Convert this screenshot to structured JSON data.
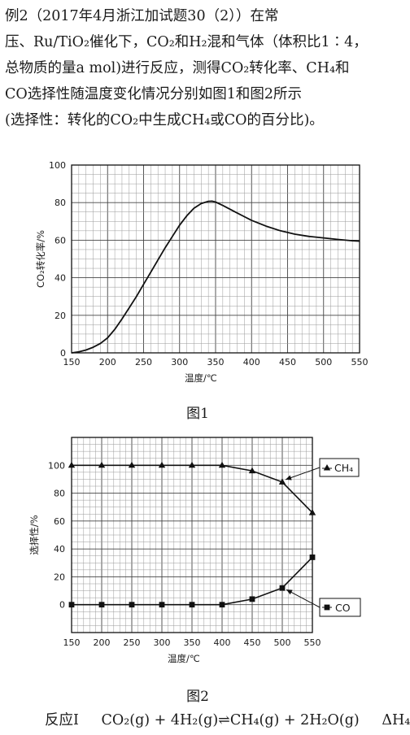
{
  "paragraph": {
    "lines": [
      "例2（2017年4月浙江加试题30（2））在常",
      "压、Ru/TiO₂催化下，CO₂和H₂混和气体（体积比1∶4，",
      "总物质的量a mol)进行反应，测得CO₂转化率、CH₄和",
      "CO选择性随温度变化情况分别如图1和图2所示",
      "(选择性：转化的CO₂中生成CH₄或CO的百分比)。"
    ]
  },
  "figure1_caption": "图1",
  "figure2_caption": "图2",
  "reaction_line": {
    "label": "反应Ⅰ",
    "equation": "CO₂(g) + 4H₂(g)⇌CH₄(g) + 2H₂O(g)",
    "delta": "ΔH₄"
  },
  "chart_data": [
    {
      "type": "line",
      "xlabel": "温度/℃",
      "ylabel": "CO₂转化率/%",
      "xlim": [
        150,
        550
      ],
      "ylim": [
        0,
        100
      ],
      "xticks": [
        "150",
        "200",
        "250",
        "300",
        "350",
        "400",
        "450",
        "500",
        "550"
      ],
      "yticks": [
        "0",
        "20",
        "40",
        "60",
        "80",
        "100"
      ],
      "grid": true,
      "series": [
        {
          "x": [
            150,
            160,
            170,
            180,
            190,
            200,
            210,
            220,
            230,
            240,
            250,
            260,
            270,
            280,
            290,
            300,
            310,
            320,
            330,
            340,
            345,
            350,
            360,
            370,
            380,
            390,
            400,
            420,
            440,
            460,
            480,
            500,
            520,
            540,
            550
          ],
          "y": [
            0,
            0.5,
            1.5,
            3,
            5,
            8,
            12.5,
            18,
            24,
            30,
            36.5,
            43,
            49.5,
            56,
            62,
            68,
            73,
            77,
            79.5,
            80.7,
            80.8,
            80.3,
            78.5,
            76.5,
            74.5,
            72.5,
            70.5,
            67.5,
            65,
            63.2,
            62,
            61.2,
            60.4,
            59.7,
            59.5
          ]
        }
      ]
    },
    {
      "type": "line",
      "xlabel": "温度/℃",
      "ylabel": "选择性/%",
      "xlim": [
        150,
        550
      ],
      "ylim": [
        -20,
        120
      ],
      "xticks": [
        "150",
        "200",
        "250",
        "300",
        "350",
        "400",
        "450",
        "500",
        "550"
      ],
      "yticks": [
        "0",
        "20",
        "40",
        "60",
        "80",
        "100"
      ],
      "grid": true,
      "series": [
        {
          "name": "CH₄",
          "marker": "triangle",
          "x": [
            150,
            200,
            250,
            300,
            350,
            400,
            450,
            500,
            550
          ],
          "y": [
            100,
            100,
            100,
            100,
            100,
            100,
            96,
            88,
            66
          ]
        },
        {
          "name": "CO",
          "marker": "square",
          "x": [
            150,
            200,
            250,
            300,
            350,
            400,
            450,
            500,
            550
          ],
          "y": [
            0,
            0,
            0,
            0,
            0,
            0,
            4,
            12,
            34
          ]
        }
      ]
    }
  ]
}
